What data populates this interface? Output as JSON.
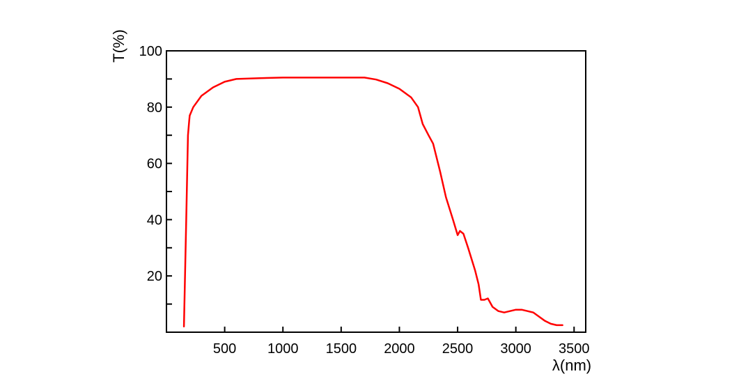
{
  "chart_data": {
    "type": "line",
    "xlabel": "λ(nm)",
    "ylabel": "T(%)",
    "xlim": [
      0,
      3600
    ],
    "ylim": [
      0,
      100
    ],
    "x_ticks": [
      500,
      1000,
      1500,
      2000,
      2500,
      3000,
      3500
    ],
    "x_tick_labels": [
      "500",
      "1000",
      "1500",
      "2000",
      "2500",
      "3000",
      "3500"
    ],
    "y_ticks": [
      20,
      40,
      60,
      80,
      100
    ],
    "y_tick_labels": [
      "20",
      "40",
      "60",
      "80",
      "100"
    ],
    "y_minor_ticks": [
      10,
      30,
      50,
      70,
      90
    ],
    "grid": false,
    "legend": "none",
    "series": [
      {
        "color": "#ff0000",
        "x": [
          150,
          170,
          185,
          195,
          200,
          230,
          300,
          400,
          500,
          600,
          800,
          1000,
          1300,
          1550,
          1700,
          1800,
          1900,
          2000,
          2100,
          2160,
          2200,
          2250,
          2290,
          2350,
          2400,
          2460,
          2500,
          2520,
          2550,
          2590,
          2650,
          2680,
          2700,
          2730,
          2760,
          2800,
          2850,
          2900,
          2950,
          3000,
          3050,
          3100,
          3150,
          3200,
          3250,
          3300,
          3350,
          3400
        ],
        "y": [
          2,
          40,
          70,
          75,
          77,
          80,
          84,
          87,
          89,
          90,
          90.3,
          90.5,
          90.5,
          90.5,
          90.5,
          89.8,
          88.5,
          86.5,
          83.5,
          80,
          74,
          70,
          67,
          57,
          48,
          40,
          34.5,
          36,
          35,
          30,
          22,
          17,
          11.5,
          11.5,
          12,
          9,
          7.5,
          7,
          7.5,
          8,
          8,
          7.5,
          7,
          5.5,
          4,
          3,
          2.5,
          2.5
        ]
      }
    ]
  }
}
